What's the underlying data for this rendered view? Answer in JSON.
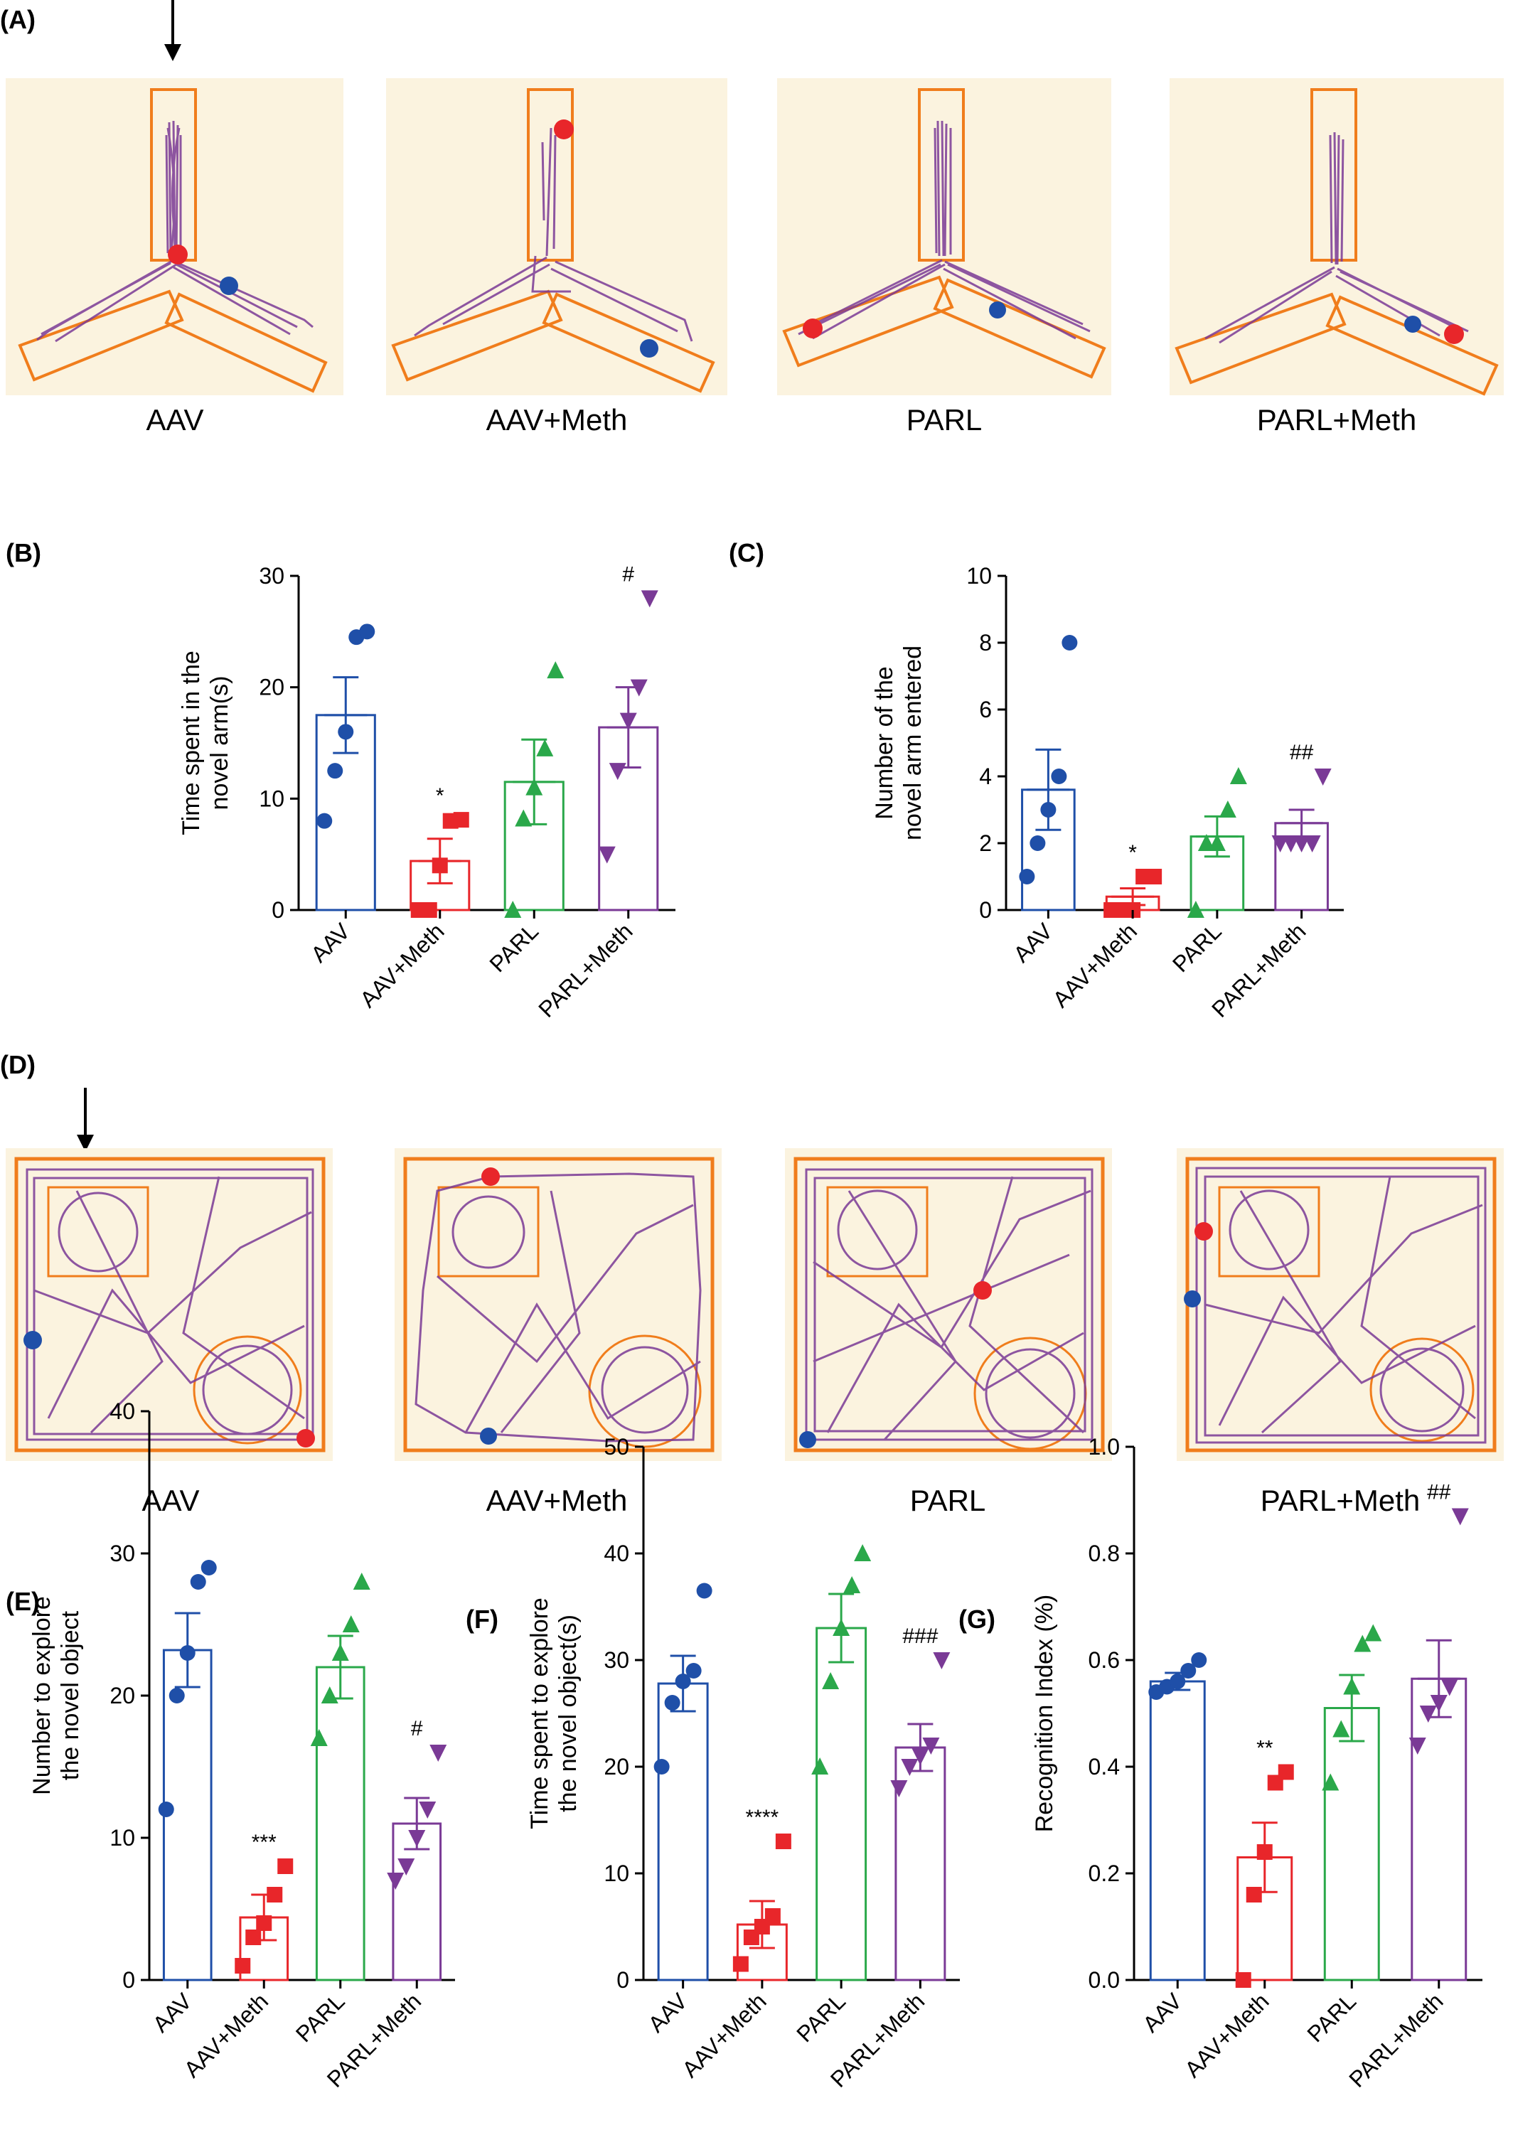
{
  "panels": {
    "A": "(A)",
    "B": "(B)",
    "C": "(C)",
    "D": "(D)",
    "E": "(E)",
    "F": "(F)",
    "G": "(G)"
  },
  "colors": {
    "AAV": "#1f4fa8",
    "AAV+Meth": "#e8262a",
    "PARL": "#2aa84a",
    "PARL+Meth": "#7a3a96",
    "arena_box": "#f07d1c",
    "arena_bg": "#fbf3df",
    "track": "#7a3a96",
    "start_dot": "#1f4fa8",
    "end_dot": "#e8262a"
  },
  "y_maze": {
    "labels": [
      "AAV",
      "AAV+Meth",
      "PARL",
      "PARL+Meth"
    ],
    "arrow_icon": "down-arrow-icon"
  },
  "open_field": {
    "labels": [
      "AAV",
      "AAV+Meth",
      "PARL",
      "PARL+Meth"
    ],
    "arrow_icon": "down-arrow-icon"
  },
  "chart_data": [
    {
      "panel": "B",
      "type": "bar",
      "ylabel": [
        "Time spent in the",
        "novel arm(s)"
      ],
      "categories": [
        "AAV",
        "AAV+Meth",
        "PARL",
        "PARL+Meth"
      ],
      "ylim": [
        0,
        30
      ],
      "yticks": [
        0,
        10,
        20,
        30
      ],
      "values": [
        17.5,
        4.4,
        11.5,
        16.4
      ],
      "sem": [
        3.4,
        2.0,
        3.8,
        3.6
      ],
      "points": [
        [
          8,
          12.5,
          16,
          24.5,
          25
        ],
        [
          0,
          0,
          4,
          8,
          8.1
        ],
        [
          0,
          8.2,
          11,
          14.5,
          21.5
        ],
        [
          5,
          12.5,
          17,
          20,
          28
        ]
      ],
      "markers": [
        "circle",
        "square",
        "triangle-up",
        "triangle-down"
      ],
      "annotations": [
        "",
        "*",
        "",
        "#"
      ]
    },
    {
      "panel": "C",
      "type": "bar",
      "ylabel": [
        "Number of the",
        "novel arm entered"
      ],
      "categories": [
        "AAV",
        "AAV+Meth",
        "PARL",
        "PARL+Meth"
      ],
      "ylim": [
        0,
        10
      ],
      "yticks": [
        0,
        2,
        4,
        6,
        8,
        10
      ],
      "values": [
        3.6,
        0.4,
        2.2,
        2.6
      ],
      "sem": [
        1.2,
        0.25,
        0.6,
        0.4
      ],
      "points": [
        [
          1,
          2,
          3,
          4,
          8
        ],
        [
          0,
          0,
          0,
          1,
          1
        ],
        [
          0,
          2,
          2,
          3,
          4
        ],
        [
          2,
          2,
          2,
          2,
          4
        ]
      ],
      "markers": [
        "circle",
        "square",
        "triangle-up",
        "triangle-down"
      ],
      "annotations": [
        "",
        "*",
        "",
        "##"
      ]
    },
    {
      "panel": "E",
      "type": "bar",
      "ylabel": [
        "Number to explore",
        "the novel object"
      ],
      "categories": [
        "AAV",
        "AAV+Meth",
        "PARL",
        "PARL+Meth"
      ],
      "ylim": [
        0,
        40
      ],
      "yticks": [
        0,
        10,
        20,
        30,
        40
      ],
      "values": [
        23.2,
        4.4,
        22,
        11
      ],
      "sem": [
        2.6,
        1.6,
        2.2,
        1.8
      ],
      "points": [
        [
          12,
          20,
          23,
          28,
          29
        ],
        [
          1,
          3,
          4,
          6,
          8
        ],
        [
          17,
          20,
          23,
          25,
          28
        ],
        [
          7,
          8,
          10,
          12,
          16
        ]
      ],
      "markers": [
        "circle",
        "square",
        "triangle-up",
        "triangle-down"
      ],
      "annotations": [
        "",
        "***",
        "",
        "#"
      ]
    },
    {
      "panel": "F",
      "type": "bar",
      "ylabel": [
        "Time spent to explore",
        "the novel object(s)"
      ],
      "categories": [
        "AAV",
        "AAV+Meth",
        "PARL",
        "PARL+Meth"
      ],
      "ylim": [
        0,
        50
      ],
      "yticks": [
        0,
        10,
        20,
        30,
        40,
        50
      ],
      "values": [
        27.8,
        5.2,
        33,
        21.8
      ],
      "sem": [
        2.6,
        2.2,
        3.2,
        2.2
      ],
      "points": [
        [
          20,
          26,
          28,
          29,
          36.5
        ],
        [
          1.5,
          4,
          5,
          6,
          13
        ],
        [
          20,
          28,
          33,
          37,
          40
        ],
        [
          18,
          20,
          21,
          22,
          30
        ]
      ],
      "markers": [
        "circle",
        "square",
        "triangle-up",
        "triangle-down"
      ],
      "annotations": [
        "",
        "****",
        "",
        "###"
      ]
    },
    {
      "panel": "G",
      "type": "bar",
      "ylabel": [
        "Recognition Index (%)"
      ],
      "categories": [
        "AAV",
        "AAV+Meth",
        "PARL",
        "PARL+Meth"
      ],
      "ylim": [
        0,
        1.0
      ],
      "yticks": [
        0.0,
        0.2,
        0.4,
        0.6,
        0.8,
        1.0
      ],
      "ytick_labels": [
        "0.0",
        "0.2",
        "0.4",
        "0.6",
        "0.8",
        "1.0"
      ],
      "values": [
        0.56,
        0.23,
        0.51,
        0.565
      ],
      "sem": [
        0.016,
        0.065,
        0.062,
        0.072
      ],
      "points": [
        [
          0.54,
          0.55,
          0.56,
          0.58,
          0.6
        ],
        [
          0.0,
          0.16,
          0.24,
          0.37,
          0.39
        ],
        [
          0.37,
          0.47,
          0.55,
          0.63,
          0.65
        ],
        [
          0.44,
          0.5,
          0.52,
          0.55,
          0.87
        ]
      ],
      "markers": [
        "circle",
        "square",
        "triangle-up",
        "triangle-down"
      ],
      "annotations": [
        "",
        "**",
        "",
        "##"
      ]
    }
  ]
}
